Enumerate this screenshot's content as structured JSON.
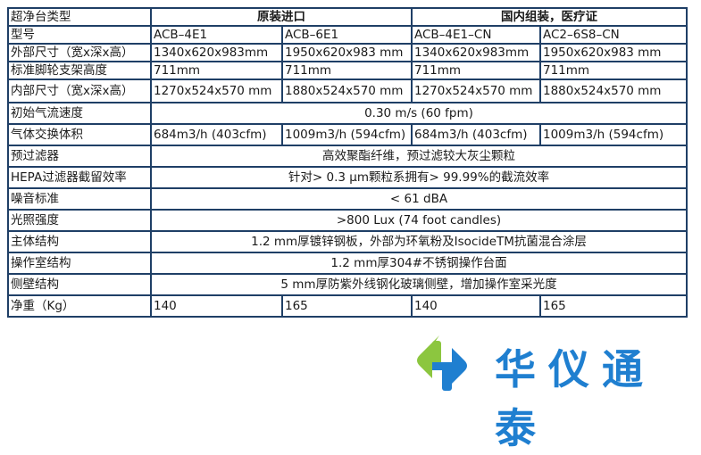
{
  "table": {
    "header": {
      "label": "超净台类型",
      "group1": "原装进口",
      "group2": "国内组装，医疗证"
    },
    "rows": [
      {
        "label": "型号",
        "cells": [
          "ACB–4E1",
          "ACB–6E1",
          "ACB–4E1–CN",
          "AC2–6S8–CN"
        ]
      },
      {
        "label": "外部尺寸（宽x深x高）",
        "cells": [
          "1340x620x983mm",
          "1950x620x983 mm",
          "1340x620x983mm",
          "1950x620x983 mm"
        ]
      },
      {
        "label": "标准脚轮支架高度",
        "cells": [
          "711mm",
          "711mm",
          "711mm",
          "711mm"
        ]
      },
      {
        "label": "内部尺寸（宽x深x高）",
        "cells": [
          "1270x524x570 mm",
          "1880x524x570 mm",
          "1270x524x570 mm",
          "1880x524x570 mm"
        ]
      },
      {
        "label": "初始气流速度",
        "span": "0.30 m/s (60 fpm)"
      },
      {
        "label": "气体交换体积",
        "cells": [
          "684m3/h (403cfm)",
          "1009m3/h (594cfm)",
          "684m3/h (403cfm)",
          "1009m3/h (594cfm)"
        ]
      },
      {
        "label": "预过滤器",
        "span": "高效聚酯纤维，预过滤较大灰尘颗粒"
      },
      {
        "label": "HEPA过滤器截留效率",
        "span": "针对> 0.3 μm颗粒系拥有> 99.99%的截流效率"
      },
      {
        "label": "噪音标准",
        "span": "< 61 dBA"
      },
      {
        "label": "光照强度",
        "span": ">800 Lux (74 foot candles)"
      },
      {
        "label": "主体结构",
        "span": "1.2 mm厚镀锌钢板，外部为环氧粉及IsocideTM抗菌混合涂层"
      },
      {
        "label": "操作室结构",
        "span": "1.2 mm厚304#不锈钢操作台面"
      },
      {
        "label": "侧壁结构",
        "span": "5 mm厚防紫外线钢化玻璃侧壁，增加操作室采光度"
      },
      {
        "label": "净重（Kg）",
        "cells": [
          "140",
          "165",
          "140",
          "165"
        ]
      }
    ]
  },
  "logo": {
    "text": "华仪通泰",
    "colors": {
      "green": "#8cc63f",
      "blue": "#1f7fd0"
    }
  },
  "colors": {
    "border": "#1f3f66"
  }
}
